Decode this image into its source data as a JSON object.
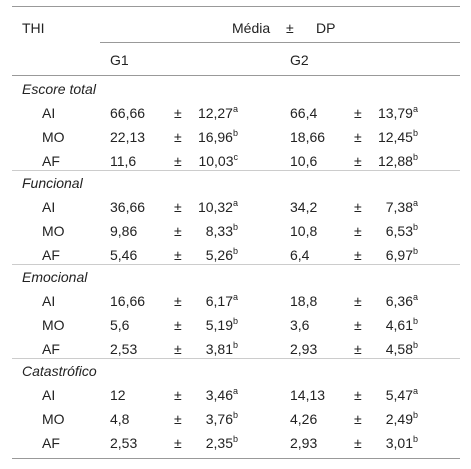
{
  "table": {
    "header": {
      "label": "THI",
      "mean": "Média",
      "pm": "±",
      "sd": "DP",
      "groups": [
        "G1",
        "G2"
      ]
    },
    "sections": [
      {
        "title": "Escore total",
        "rows": [
          {
            "label": "AI",
            "cells": [
              {
                "mean": "66,66",
                "sd": "12,27",
                "sup": "a"
              },
              {
                "mean": "66,4",
                "sd": "13,79",
                "sup": "a"
              }
            ]
          },
          {
            "label": "MO",
            "cells": [
              {
                "mean": "22,13",
                "sd": "16,96",
                "sup": "b"
              },
              {
                "mean": "18,66",
                "sd": "12,45",
                "sup": "b"
              }
            ]
          },
          {
            "label": "AF",
            "cells": [
              {
                "mean": "11,6",
                "sd": "10,03",
                "sup": "c"
              },
              {
                "mean": "10,6",
                "sd": "12,88",
                "sup": "b"
              }
            ]
          }
        ]
      },
      {
        "title": "Funcional",
        "rows": [
          {
            "label": "AI",
            "cells": [
              {
                "mean": "36,66",
                "sd": "10,32",
                "sup": "a"
              },
              {
                "mean": "34,2",
                "sd": "7,38",
                "sup": "a"
              }
            ]
          },
          {
            "label": "MO",
            "cells": [
              {
                "mean": "9,86",
                "sd": "8,33",
                "sup": "b"
              },
              {
                "mean": "10,8",
                "sd": "6,53",
                "sup": "b"
              }
            ]
          },
          {
            "label": "AF",
            "cells": [
              {
                "mean": "5,46",
                "sd": "5,26",
                "sup": "b"
              },
              {
                "mean": "6,4",
                "sd": "6,97",
                "sup": "b"
              }
            ]
          }
        ]
      },
      {
        "title": "Emocional",
        "rows": [
          {
            "label": "AI",
            "cells": [
              {
                "mean": "16,66",
                "sd": "6,17",
                "sup": "a"
              },
              {
                "mean": "18,8",
                "sd": "6,36",
                "sup": "a"
              }
            ]
          },
          {
            "label": "MO",
            "cells": [
              {
                "mean": "5,6",
                "sd": "5,19",
                "sup": "b"
              },
              {
                "mean": "3,6",
                "sd": "4,61",
                "sup": "b"
              }
            ]
          },
          {
            "label": "AF",
            "cells": [
              {
                "mean": "2,53",
                "sd": "3,81",
                "sup": "b"
              },
              {
                "mean": "2,93",
                "sd": "4,58",
                "sup": "b"
              }
            ]
          }
        ]
      },
      {
        "title": "Catastrófico",
        "rows": [
          {
            "label": "AI",
            "cells": [
              {
                "mean": "12",
                "sd": "3,46",
                "sup": "a"
              },
              {
                "mean": "14,13",
                "sd": "5,47",
                "sup": "a"
              }
            ]
          },
          {
            "label": "MO",
            "cells": [
              {
                "mean": "4,8",
                "sd": "3,76",
                "sup": "b"
              },
              {
                "mean": "4,26",
                "sd": "2,49",
                "sup": "b"
              }
            ]
          },
          {
            "label": "AF",
            "cells": [
              {
                "mean": "2,53",
                "sd": "2,35",
                "sup": "b"
              },
              {
                "mean": "2,93",
                "sd": "3,01",
                "sup": "b"
              }
            ]
          }
        ]
      }
    ]
  }
}
